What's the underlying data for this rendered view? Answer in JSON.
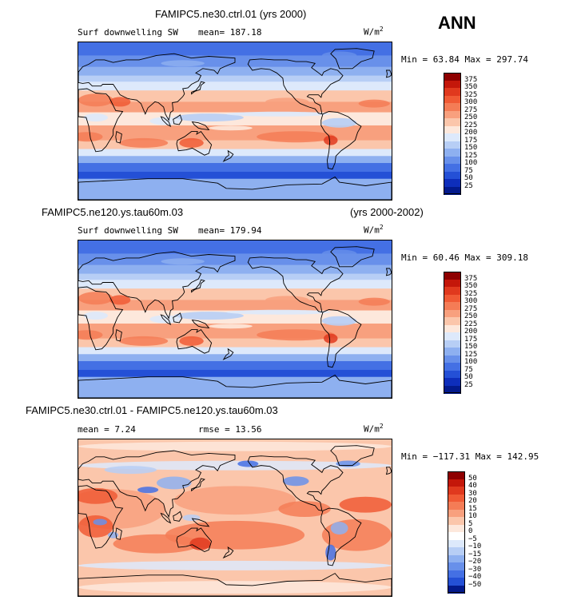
{
  "season_label": "ANN",
  "panels": [
    {
      "case_title": "FAMIPC5.ne30.ctrl.01 (yrs 2000)",
      "case_years": "",
      "left_label": "Surf downwelling SW",
      "stat_text": "mean= 187.18",
      "stat2_text": "",
      "units": "W/m",
      "units_sup": "2",
      "minmax": "Min =  63.84 Max = 297.74",
      "levels": [
        "375",
        "350",
        "325",
        "300",
        "275",
        "250",
        "225",
        "200",
        "175",
        "150",
        "125",
        "100",
        "75",
        "50",
        "25"
      ],
      "colors": [
        "#8e0000",
        "#c4170a",
        "#e0391e",
        "#f05a35",
        "#f47c56",
        "#f8a07e",
        "#fbc6ab",
        "#fde8dc",
        "#dde9fb",
        "#b7cef5",
        "#8eb0f0",
        "#6890ea",
        "#4470e4",
        "#2450d6",
        "#0e2ebb",
        "#031a8c"
      ],
      "style": "abs"
    },
    {
      "case_title": "FAMIPC5.ne120.ys.tau60m.03",
      "case_years": "(yrs 2000-2002)",
      "left_label": "Surf downwelling SW",
      "stat_text": "mean= 179.94",
      "stat2_text": "",
      "units": "W/m",
      "units_sup": "2",
      "minmax": "Min =  60.46 Max = 309.18",
      "levels": [
        "375",
        "350",
        "325",
        "300",
        "275",
        "250",
        "225",
        "200",
        "175",
        "150",
        "125",
        "100",
        "75",
        "50",
        "25"
      ],
      "colors": [
        "#8e0000",
        "#c4170a",
        "#e0391e",
        "#f05a35",
        "#f47c56",
        "#f8a07e",
        "#fbc6ab",
        "#fde8dc",
        "#dde9fb",
        "#b7cef5",
        "#8eb0f0",
        "#6890ea",
        "#4470e4",
        "#2450d6",
        "#0e2ebb",
        "#031a8c"
      ],
      "style": "abs"
    },
    {
      "case_title": "FAMIPC5.ne30.ctrl.01 - FAMIPC5.ne120.ys.tau60m.03",
      "case_years": "",
      "left_label": "mean =    7.24",
      "stat_text": "rmse =   13.56",
      "stat2_text": "",
      "units": "W/m",
      "units_sup": "2",
      "minmax": "Min = −117.31 Max = 142.95",
      "levels": [
        "50",
        "40",
        "30",
        "20",
        "15",
        "10",
        "5",
        "0",
        "−5",
        "−10",
        "−15",
        "−20",
        "−30",
        "−40",
        "−50"
      ],
      "colors": [
        "#8e0000",
        "#c4170a",
        "#e0391e",
        "#f05a35",
        "#f47c56",
        "#f8a07e",
        "#fbc6ab",
        "#fde8dc",
        "#ffffff",
        "#dde9fb",
        "#b7cef5",
        "#8eb0f0",
        "#6890ea",
        "#4470e4",
        "#2450d6",
        "#031a8c"
      ],
      "style": "diff"
    }
  ]
}
